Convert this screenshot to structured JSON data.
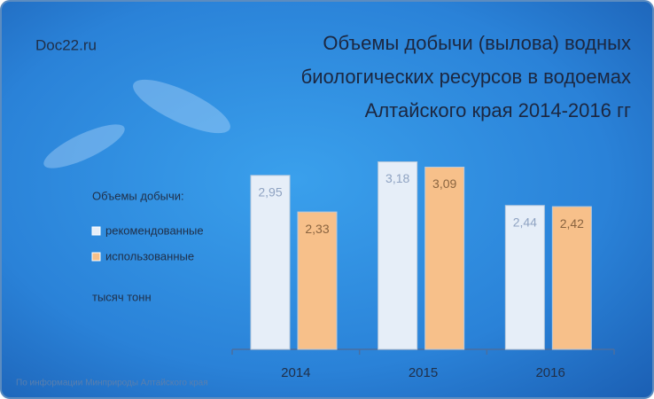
{
  "chart_data": {
    "type": "bar",
    "site": "Doc22.ru",
    "title": [
      "Объемы добычи (вылова) водных",
      "биологических ресурсов в водоемах",
      "Алтайского края 2014-2016 гг"
    ],
    "legend_title": "Объемы добычи:",
    "unit": "тысяч тонн",
    "source": "По информации Минприроды Алтайского края",
    "categories": [
      "2014",
      "2015",
      "2016"
    ],
    "series": [
      {
        "name": "рекомендованные",
        "color": "#e6eef8",
        "values": [
          2.95,
          3.18,
          2.44
        ],
        "value_labels": [
          "2,95",
          "3,18",
          "2,44"
        ]
      },
      {
        "name": "использованные",
        "color": "#f7c08a",
        "values": [
          2.33,
          3.09,
          2.42
        ],
        "value_labels": [
          "2,33",
          "3,09",
          "2,42"
        ]
      }
    ]
  }
}
